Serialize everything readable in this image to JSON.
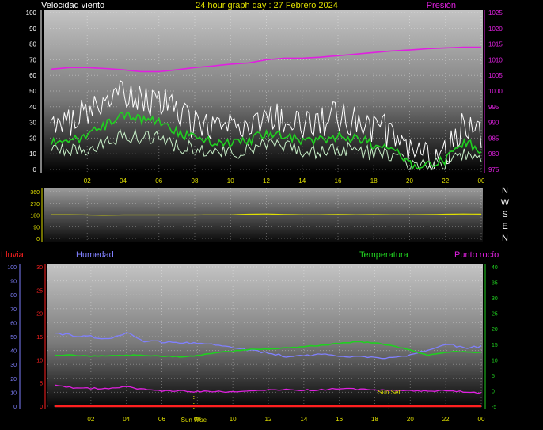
{
  "header": {
    "title": "24 hour graph day : 27 Febrero 2024",
    "left_label": "Velocidad viento",
    "right_label": "Presión"
  },
  "colors": {
    "background": "#000000",
    "title": "#e0e000",
    "pressure": "#e020e0",
    "gust": "#ffffff",
    "avg_speed": "#20d020",
    "speed": "#c8f0c8",
    "direction": "#e0e000",
    "humidity": "#8080ff",
    "temperature": "#20d020",
    "dewpoint": "#e020e0",
    "rain": "#ff2020",
    "sun_marker": "#e0e000"
  },
  "sun": {
    "rise_label": "Sun Rise",
    "set_label": "Sun Set",
    "rise_hour": 7.8,
    "set_hour": 18.8
  },
  "chart_data": [
    {
      "type": "line",
      "x_ticks": [
        "02",
        "04",
        "06",
        "08",
        "10",
        "12",
        "14",
        "16",
        "18",
        "20",
        "22",
        "00"
      ],
      "y_left": {
        "label": "Velocidad viento",
        "ticks": [
          0,
          10,
          20,
          30,
          40,
          50,
          60,
          70,
          80,
          90,
          100
        ],
        "range": [
          0,
          100
        ]
      },
      "y_right": {
        "label": "Presión",
        "ticks": [
          975,
          980,
          985,
          990,
          995,
          1000,
          1005,
          1010,
          1015,
          1020,
          1025
        ],
        "range": [
          975,
          1025
        ]
      },
      "series": [
        {
          "name": "Presión",
          "axis": "right",
          "x": [
            0,
            1,
            2,
            3,
            4,
            5,
            6,
            7,
            8,
            9,
            10,
            11,
            12,
            13,
            14,
            15,
            16,
            17,
            18,
            19,
            20,
            21,
            22,
            23,
            24
          ],
          "values": [
            1007.0,
            1007.5,
            1007.5,
            1007.2,
            1006.8,
            1006.2,
            1006.2,
            1006.8,
            1007.5,
            1008.0,
            1008.6,
            1009.0,
            1010.0,
            1010.5,
            1010.5,
            1010.8,
            1011.3,
            1011.8,
            1012.3,
            1012.8,
            1013.1,
            1013.5,
            1013.8,
            1014.0,
            1014.0
          ]
        },
        {
          "name": "Velocidad viento (ráfaga)",
          "axis": "left",
          "x": [
            0,
            1,
            2,
            3,
            4,
            5,
            6,
            7,
            8,
            9,
            10,
            11,
            12,
            13,
            14,
            15,
            16,
            17,
            18,
            19,
            20,
            21,
            22,
            23,
            24
          ],
          "values": [
            28,
            30,
            38,
            42,
            48,
            46,
            44,
            36,
            30,
            28,
            26,
            28,
            34,
            32,
            28,
            30,
            34,
            30,
            26,
            24,
            10,
            8,
            10,
            30,
            22
          ]
        },
        {
          "name": "Velocidad media",
          "axis": "left",
          "x": [
            0,
            1,
            2,
            3,
            4,
            5,
            6,
            7,
            8,
            9,
            10,
            11,
            12,
            13,
            14,
            15,
            16,
            17,
            18,
            19,
            20,
            21,
            22,
            23,
            24
          ],
          "values": [
            18,
            17,
            22,
            28,
            34,
            32,
            30,
            24,
            20,
            18,
            17,
            18,
            24,
            22,
            18,
            19,
            21,
            20,
            16,
            14,
            3,
            3,
            6,
            18,
            13
          ]
        },
        {
          "name": "Velocidad viento",
          "axis": "left",
          "x": [
            0,
            1,
            2,
            3,
            4,
            5,
            6,
            7,
            8,
            9,
            10,
            11,
            12,
            13,
            14,
            15,
            16,
            17,
            18,
            19,
            20,
            21,
            22,
            23,
            24
          ],
          "values": [
            12,
            11,
            14,
            18,
            22,
            21,
            20,
            15,
            13,
            12,
            11,
            12,
            15,
            14,
            11,
            12,
            13,
            12,
            10,
            9,
            2,
            2,
            4,
            11,
            8
          ]
        }
      ]
    },
    {
      "type": "line",
      "y_left": {
        "ticks": [
          0,
          90,
          180,
          270,
          360
        ],
        "range": [
          0,
          360
        ]
      },
      "y_right": {
        "ticks": [
          "N",
          "W",
          "S",
          "E",
          "N"
        ]
      },
      "series": [
        {
          "name": "Dirección viento",
          "x": [
            0,
            1,
            2,
            3,
            4,
            5,
            6,
            7,
            8,
            9,
            10,
            11,
            12,
            13,
            14,
            15,
            16,
            17,
            18,
            19,
            20,
            21,
            22,
            23,
            24
          ],
          "values": [
            182,
            182,
            180,
            178,
            180,
            180,
            180,
            180,
            180,
            181,
            181,
            186,
            188,
            184,
            182,
            182,
            184,
            182,
            183,
            182,
            182,
            183,
            186,
            188,
            187
          ]
        }
      ]
    },
    {
      "type": "line",
      "x_ticks": [
        "02",
        "04",
        "06",
        "08",
        "10",
        "12",
        "14",
        "16",
        "18",
        "20",
        "22",
        "00"
      ],
      "y_left_outer": {
        "label": "Lluvia",
        "ticks": [
          0,
          5,
          10,
          15,
          20,
          25,
          30
        ],
        "range": [
          0,
          30
        ]
      },
      "y_left_inner": {
        "label": "Humedad",
        "ticks": [
          0,
          10,
          20,
          30,
          40,
          50,
          60,
          70,
          80,
          90,
          100
        ],
        "range": [
          0,
          100
        ]
      },
      "y_right": {
        "label": "Temperatura",
        "ticks": [
          -5,
          0,
          5,
          10,
          15,
          20,
          25,
          30,
          35,
          40
        ],
        "range": [
          -5,
          40
        ]
      },
      "legend_right": "Punto rocío",
      "series": [
        {
          "name": "Humedad",
          "axis": "inner",
          "x": [
            0,
            1,
            2,
            3,
            4,
            5,
            6,
            7,
            8,
            9,
            10,
            11,
            12,
            13,
            14,
            15,
            16,
            17,
            18,
            19,
            20,
            21,
            22,
            23,
            24
          ],
          "values": [
            52,
            51,
            50,
            48,
            53,
            47,
            46,
            46,
            45,
            44,
            42,
            40,
            38,
            36,
            36,
            37,
            36,
            36,
            35,
            35,
            37,
            40,
            45,
            42,
            43
          ]
        },
        {
          "name": "Temperatura",
          "axis": "right",
          "x": [
            0,
            1,
            2,
            3,
            4,
            5,
            6,
            7,
            8,
            9,
            10,
            11,
            12,
            13,
            14,
            15,
            16,
            17,
            18,
            19,
            20,
            21,
            22,
            23,
            24
          ],
          "values": [
            11.5,
            11.5,
            11.2,
            11.3,
            11.5,
            11.5,
            11.2,
            11.0,
            11.3,
            12.2,
            12.8,
            13.3,
            13.5,
            13.8,
            14.2,
            14.7,
            15.3,
            15.8,
            15.5,
            14.5,
            13.2,
            11.5,
            12.5,
            12.7,
            12.3
          ]
        },
        {
          "name": "Punto rocío",
          "axis": "right",
          "x": [
            0,
            1,
            2,
            3,
            4,
            5,
            6,
            7,
            8,
            9,
            10,
            11,
            12,
            13,
            14,
            15,
            16,
            17,
            18,
            19,
            20,
            21,
            22,
            23,
            24
          ],
          "values": [
            1.7,
            1.0,
            0.8,
            0.7,
            1.2,
            0.5,
            0.0,
            0.0,
            -0.3,
            -0.3,
            -0.3,
            -0.2,
            0.2,
            0.3,
            0.2,
            0.3,
            0.7,
            0.5,
            0.3,
            0.0,
            0.0,
            0.0,
            0.0,
            -0.3,
            -0.7
          ]
        },
        {
          "name": "Lluvia",
          "axis": "outer",
          "x": [
            0,
            24
          ],
          "values": [
            0,
            0
          ]
        }
      ]
    }
  ]
}
